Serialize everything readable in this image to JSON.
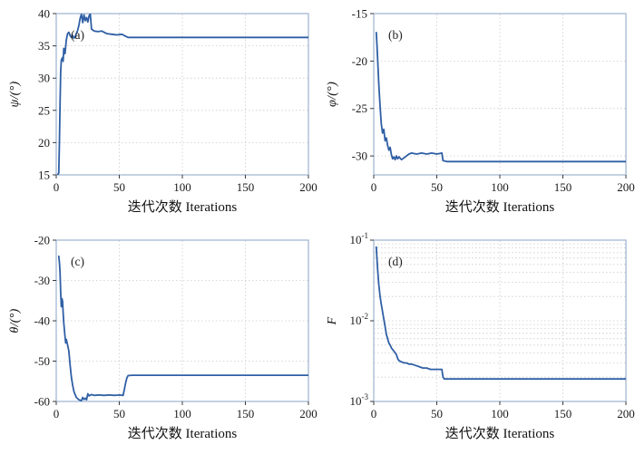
{
  "style": {
    "frame_color": "#a3b8d2",
    "grid_color": "#cccccc",
    "tick_color": "#3a3a3a",
    "label_color": "#1a1a1a"
  },
  "chart_data": [
    {
      "type": "line",
      "tag": "(a)",
      "ylabel": "ψ/(°)",
      "xlabel": "迭代次数 Iterations",
      "xlim": [
        0,
        200
      ],
      "ylim": [
        15,
        40
      ],
      "xticks": [
        0,
        50,
        100,
        150,
        200
      ],
      "yticks": [
        15,
        20,
        25,
        30,
        35,
        40
      ],
      "yscale": "linear",
      "line_color": "#2f5fa5",
      "points": [
        [
          1,
          15
        ],
        [
          2,
          15.3
        ],
        [
          2.5,
          20
        ],
        [
          3,
          26
        ],
        [
          3.5,
          31
        ],
        [
          4,
          32.8
        ],
        [
          5,
          33.2
        ],
        [
          5.5,
          32.6
        ],
        [
          6,
          34.6
        ],
        [
          7,
          33.8
        ],
        [
          8,
          35.9
        ],
        [
          9,
          36.9
        ],
        [
          10,
          37.1
        ],
        [
          11,
          36.6
        ],
        [
          12,
          36.3
        ],
        [
          13,
          36.6
        ],
        [
          14,
          36.2
        ],
        [
          15,
          36.4
        ],
        [
          16,
          36.9
        ],
        [
          17,
          37.4
        ],
        [
          18,
          38.2
        ],
        [
          19,
          39.3
        ],
        [
          20,
          39.9
        ],
        [
          21,
          38.6
        ],
        [
          22,
          39.8
        ],
        [
          23,
          38.9
        ],
        [
          24,
          39.4
        ],
        [
          25,
          38.7
        ],
        [
          26,
          39.6
        ],
        [
          27,
          40
        ],
        [
          27.5,
          38.8
        ],
        [
          28,
          37.6
        ],
        [
          30,
          37.3
        ],
        [
          33,
          37.2
        ],
        [
          36,
          37.3
        ],
        [
          40,
          36.9
        ],
        [
          44,
          36.8
        ],
        [
          48,
          36.7
        ],
        [
          52,
          36.8
        ],
        [
          55,
          36.5
        ],
        [
          57,
          36.3
        ],
        [
          60,
          36.3
        ],
        [
          100,
          36.3
        ],
        [
          200,
          36.3
        ]
      ]
    },
    {
      "type": "line",
      "tag": "(b)",
      "ylabel": "φ/(°)",
      "xlabel": "迭代次数 Iterations",
      "xlim": [
        0,
        200
      ],
      "ylim": [
        -32,
        -15
      ],
      "xticks": [
        0,
        50,
        100,
        150,
        200
      ],
      "yticks": [
        -15,
        -20,
        -25,
        -30
      ],
      "yscale": "linear",
      "line_color": "#2f5fa5",
      "points": [
        [
          2,
          -17
        ],
        [
          2.5,
          -18.2
        ],
        [
          3,
          -19.6
        ],
        [
          4,
          -22.5
        ],
        [
          5,
          -24.8
        ],
        [
          6,
          -26.6
        ],
        [
          7,
          -27.6
        ],
        [
          8,
          -27.2
        ],
        [
          9,
          -28.4
        ],
        [
          10,
          -28.1
        ],
        [
          11,
          -28.9
        ],
        [
          12,
          -29.4
        ],
        [
          13,
          -29.1
        ],
        [
          14,
          -29.9
        ],
        [
          15,
          -30.3
        ],
        [
          16,
          -30.1
        ],
        [
          17,
          -30.4
        ],
        [
          18,
          -30
        ],
        [
          19,
          -30.3
        ],
        [
          20,
          -30.1
        ],
        [
          22,
          -30.4
        ],
        [
          24,
          -30.2
        ],
        [
          26,
          -30
        ],
        [
          28,
          -29.8
        ],
        [
          30,
          -29.7
        ],
        [
          34,
          -29.8
        ],
        [
          38,
          -29.7
        ],
        [
          42,
          -29.8
        ],
        [
          46,
          -29.7
        ],
        [
          50,
          -29.8
        ],
        [
          54,
          -29.7
        ],
        [
          55,
          -30.5
        ],
        [
          58,
          -30.6
        ],
        [
          100,
          -30.6
        ],
        [
          200,
          -30.6
        ]
      ]
    },
    {
      "type": "line",
      "tag": "(c)",
      "ylabel": "θ/(°)",
      "xlabel": "迭代次数 Iterations",
      "xlim": [
        0,
        200
      ],
      "ylim": [
        -60,
        -20
      ],
      "xticks": [
        0,
        50,
        100,
        150,
        200
      ],
      "yticks": [
        -20,
        -30,
        -40,
        -50,
        -60
      ],
      "yscale": "linear",
      "line_color": "#2f5fa5",
      "points": [
        [
          2,
          -24
        ],
        [
          2.5,
          -25.5
        ],
        [
          3,
          -28
        ],
        [
          3.5,
          -33
        ],
        [
          4,
          -36.5
        ],
        [
          4.5,
          -34.5
        ],
        [
          5,
          -35.2
        ],
        [
          5.5,
          -38
        ],
        [
          6,
          -40.5
        ],
        [
          7,
          -44
        ],
        [
          7.5,
          -45.5
        ],
        [
          8,
          -44.6
        ],
        [
          9,
          -46
        ],
        [
          10,
          -47.5
        ],
        [
          11,
          -51
        ],
        [
          12,
          -54
        ],
        [
          13,
          -56
        ],
        [
          14,
          -57.5
        ],
        [
          15,
          -58.3
        ],
        [
          16,
          -59
        ],
        [
          17,
          -59.3
        ],
        [
          18,
          -59.6
        ],
        [
          20,
          -59.8
        ],
        [
          21,
          -59
        ],
        [
          22,
          -59.5
        ],
        [
          23,
          -59.2
        ],
        [
          24,
          -59.6
        ],
        [
          25,
          -58.1
        ],
        [
          26,
          -58.6
        ],
        [
          28,
          -58.3
        ],
        [
          30,
          -58.5
        ],
        [
          34,
          -58.4
        ],
        [
          38,
          -58.5
        ],
        [
          42,
          -58.4
        ],
        [
          46,
          -58.5
        ],
        [
          50,
          -58.4
        ],
        [
          53,
          -58.5
        ],
        [
          54,
          -57
        ],
        [
          55,
          -55.5
        ],
        [
          56,
          -54.2
        ],
        [
          57,
          -53.6
        ],
        [
          60,
          -53.5
        ],
        [
          100,
          -53.5
        ],
        [
          200,
          -53.5
        ]
      ]
    },
    {
      "type": "line",
      "tag": "(d)",
      "ylabel": "F",
      "xlabel": "迭代次数 Iterations",
      "xlim": [
        0,
        200
      ],
      "ylim": [
        0.001,
        0.1
      ],
      "xticks": [
        0,
        50,
        100,
        150,
        200
      ],
      "yticks": [
        0.1,
        0.01,
        0.001
      ],
      "ygrid": [
        0.002,
        0.003,
        0.004,
        0.005,
        0.006,
        0.007,
        0.008,
        0.009,
        0.01,
        0.02,
        0.03,
        0.04,
        0.05,
        0.06,
        0.07,
        0.08,
        0.09
      ],
      "yscale": "log",
      "line_color": "#2f5fa5",
      "points": [
        [
          2,
          0.082
        ],
        [
          2.5,
          0.06
        ],
        [
          3,
          0.045
        ],
        [
          3.5,
          0.035
        ],
        [
          4,
          0.028
        ],
        [
          5,
          0.02
        ],
        [
          6,
          0.016
        ],
        [
          7,
          0.013
        ],
        [
          8,
          0.0105
        ],
        [
          9,
          0.0085
        ],
        [
          10,
          0.0068
        ],
        [
          11,
          0.006
        ],
        [
          12,
          0.0053
        ],
        [
          13,
          0.005
        ],
        [
          14,
          0.0046
        ],
        [
          15,
          0.0044
        ],
        [
          16,
          0.0042
        ],
        [
          17,
          0.004
        ],
        [
          18,
          0.0038
        ],
        [
          19,
          0.0034
        ],
        [
          20,
          0.0032
        ],
        [
          22,
          0.0031
        ],
        [
          24,
          0.003
        ],
        [
          26,
          0.003
        ],
        [
          28,
          0.0029
        ],
        [
          30,
          0.0029
        ],
        [
          33,
          0.0028
        ],
        [
          36,
          0.0027
        ],
        [
          39,
          0.0026
        ],
        [
          42,
          0.0026
        ],
        [
          45,
          0.0025
        ],
        [
          48,
          0.0025
        ],
        [
          51,
          0.0025
        ],
        [
          54,
          0.0025
        ],
        [
          55,
          0.002
        ],
        [
          56,
          0.0019
        ],
        [
          60,
          0.0019
        ],
        [
          100,
          0.0019
        ],
        [
          200,
          0.0019
        ]
      ]
    }
  ]
}
